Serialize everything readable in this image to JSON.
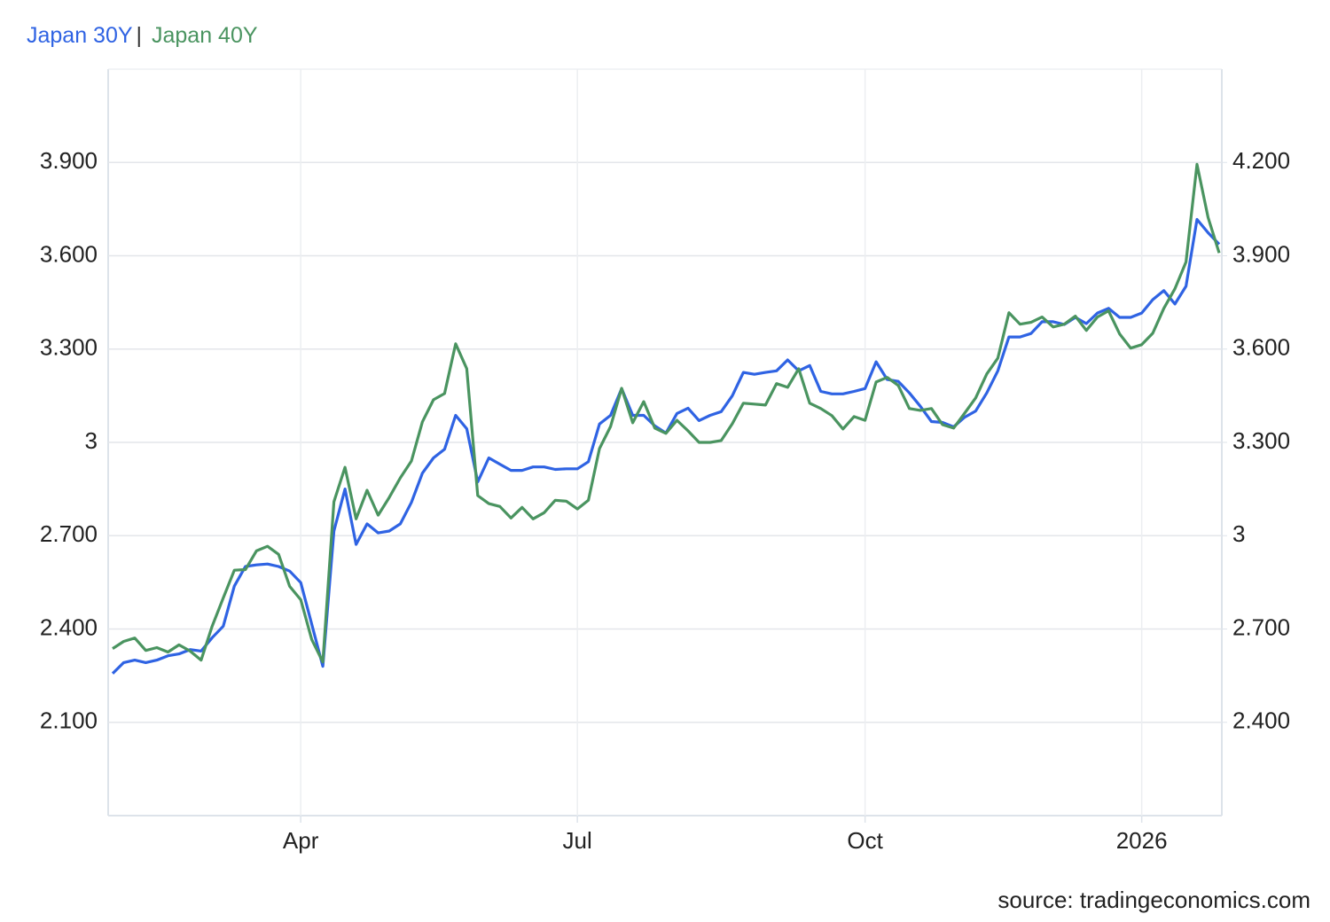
{
  "chart_data": {
    "type": "line",
    "legend_separator": "|",
    "source": "source: tradingeconomics.com",
    "categories": [
      null,
      null,
      null,
      null,
      null,
      null,
      null,
      null,
      null,
      null,
      null,
      null,
      null,
      null,
      null,
      null,
      null,
      "Apr",
      null,
      null,
      null,
      null,
      null,
      null,
      null,
      null,
      null,
      null,
      null,
      null,
      null,
      null,
      null,
      null,
      null,
      null,
      null,
      null,
      null,
      null,
      null,
      null,
      "Jul",
      null,
      null,
      null,
      null,
      null,
      null,
      null,
      null,
      null,
      null,
      null,
      null,
      null,
      null,
      null,
      null,
      null,
      null,
      null,
      null,
      null,
      null,
      null,
      null,
      null,
      "Oct",
      null,
      null,
      null,
      null,
      null,
      null,
      null,
      null,
      null,
      null,
      null,
      null,
      null,
      null,
      null,
      null,
      null,
      null,
      null,
      null,
      null,
      null,
      null,
      null,
      "2026",
      null,
      null,
      null,
      null,
      null,
      null,
      null
    ],
    "series": [
      {
        "name": "Japan 30Y",
        "color": "#2f63e3",
        "values": [
          2.257,
          2.292,
          2.3,
          2.292,
          2.3,
          2.314,
          2.32,
          2.334,
          2.329,
          2.372,
          2.409,
          2.538,
          2.601,
          2.606,
          2.609,
          2.601,
          2.586,
          2.549,
          2.415,
          2.28,
          2.715,
          2.85,
          2.672,
          2.738,
          2.709,
          2.715,
          2.738,
          2.807,
          2.901,
          2.95,
          2.978,
          3.087,
          3.044,
          2.873,
          2.95,
          2.93,
          2.91,
          2.91,
          2.921,
          2.921,
          2.913,
          2.915,
          2.915,
          2.938,
          3.059,
          3.087,
          3.173,
          3.087,
          3.087,
          3.053,
          3.03,
          3.093,
          3.11,
          3.07,
          3.087,
          3.099,
          3.15,
          3.225,
          3.219,
          3.225,
          3.23,
          3.265,
          3.23,
          3.247,
          3.164,
          3.156,
          3.156,
          3.164,
          3.173,
          3.259,
          3.202,
          3.196,
          3.159,
          3.116,
          3.067,
          3.064,
          3.05,
          3.081,
          3.101,
          3.159,
          3.23,
          3.339,
          3.339,
          3.35,
          3.388,
          3.388,
          3.379,
          3.402,
          3.382,
          3.416,
          3.431,
          3.402,
          3.402,
          3.416,
          3.459,
          3.488,
          3.445,
          3.502,
          3.717,
          3.674,
          3.637
        ]
      },
      {
        "name": "Japan 40Y",
        "color": "#4a9460",
        "axis": "y2",
        "values": [
          2.637,
          2.66,
          2.671,
          2.631,
          2.64,
          2.626,
          2.649,
          2.629,
          2.6,
          2.709,
          2.8,
          2.889,
          2.891,
          2.951,
          2.966,
          2.94,
          2.837,
          2.794,
          2.666,
          2.594,
          3.109,
          3.22,
          3.054,
          3.146,
          3.066,
          3.123,
          3.186,
          3.24,
          3.366,
          3.437,
          3.457,
          3.617,
          3.537,
          3.129,
          3.103,
          3.094,
          3.057,
          3.091,
          3.054,
          3.074,
          3.114,
          3.111,
          3.086,
          3.114,
          3.28,
          3.351,
          3.474,
          3.363,
          3.431,
          3.346,
          3.329,
          3.371,
          3.337,
          3.3,
          3.3,
          3.306,
          3.36,
          3.426,
          3.423,
          3.42,
          3.489,
          3.477,
          3.537,
          3.426,
          3.409,
          3.386,
          3.343,
          3.383,
          3.371,
          3.494,
          3.509,
          3.483,
          3.409,
          3.403,
          3.409,
          3.357,
          3.346,
          3.394,
          3.443,
          3.52,
          3.571,
          3.717,
          3.68,
          3.686,
          3.703,
          3.671,
          3.68,
          3.706,
          3.66,
          3.703,
          3.723,
          3.649,
          3.603,
          3.614,
          3.651,
          3.731,
          3.794,
          3.88,
          4.194,
          4.023,
          3.909
        ]
      }
    ],
    "ylim": [
      1.8,
      4.2
    ],
    "yticks": [
      {
        "value": 2.1,
        "label": "2.100"
      },
      {
        "value": 2.4,
        "label": "2.400"
      },
      {
        "value": 2.7,
        "label": "2.700"
      },
      3,
      {
        "value": 3.3,
        "label": "3.300"
      },
      {
        "value": 3.6,
        "label": "3.600"
      },
      {
        "value": 3.9,
        "label": "3.900"
      }
    ],
    "y2lim": [
      2.1,
      4.5
    ],
    "y2ticks": [
      {
        "value": 2.4,
        "label": "2.400"
      },
      {
        "value": 2.7,
        "label": "2.700"
      },
      3,
      {
        "value": 3.3,
        "label": "3.300"
      },
      {
        "value": 3.6,
        "label": "3.600"
      },
      {
        "value": 3.9,
        "label": "3.900"
      },
      {
        "value": 4.2,
        "label": "4.200"
      }
    ],
    "grid": true
  }
}
